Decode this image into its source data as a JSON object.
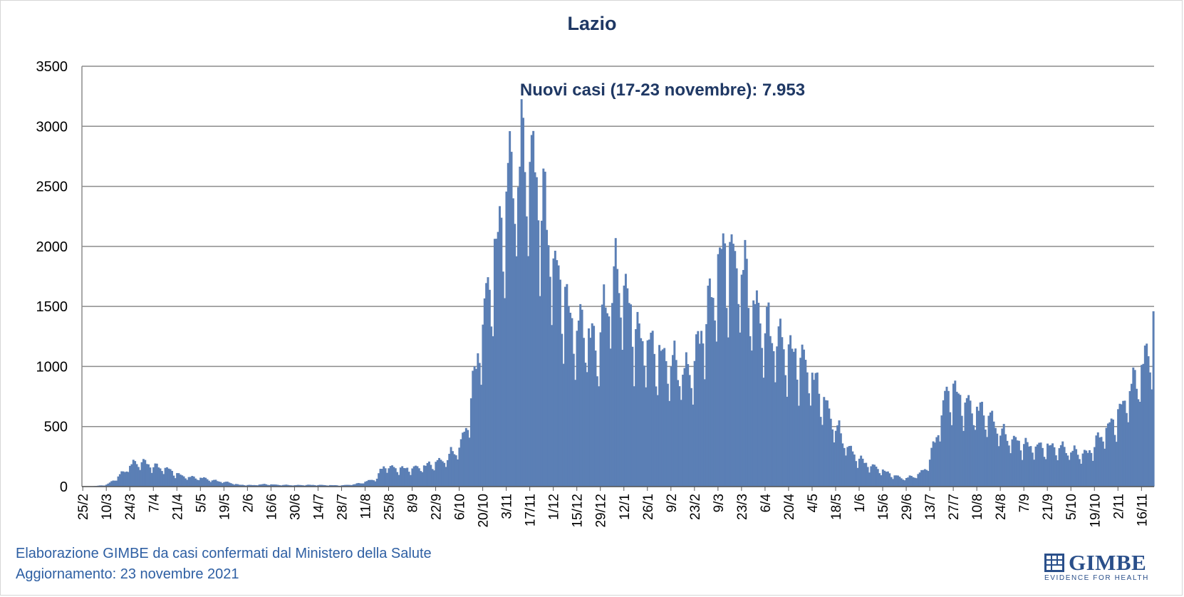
{
  "chart_data": {
    "type": "bar",
    "title": "Lazio",
    "annotation": "Nuovi casi (17-23 novembre): 7.953",
    "xlabel": "",
    "ylabel": "",
    "ylim": [
      0,
      3500
    ],
    "yticks": [
      0,
      500,
      1000,
      1500,
      2000,
      2500,
      3000,
      3500
    ],
    "grid": true,
    "legend": "none",
    "x_tick_labels": [
      "25/2",
      "10/3",
      "24/3",
      "7/4",
      "21/4",
      "5/5",
      "19/5",
      "2/6",
      "16/6",
      "30/6",
      "14/7",
      "28/7",
      "11/8",
      "25/8",
      "8/9",
      "22/9",
      "6/10",
      "20/10",
      "3/11",
      "17/11",
      "1/12",
      "15/12",
      "29/12",
      "12/1",
      "26/1",
      "9/2",
      "23/2",
      "9/3",
      "23/3",
      "6/4",
      "20/4",
      "4/5",
      "18/5",
      "1/6",
      "15/6",
      "29/6",
      "13/7",
      "27/7",
      "10/8",
      "24/8",
      "7/9",
      "21/9",
      "5/10",
      "19/10",
      "2/11",
      "16/11"
    ],
    "x_start": "2020-02-25",
    "x_end": "2021-11-23",
    "series": [
      {
        "name": "",
        "color": "#5b7fb5",
        "points": [
          [
            "2020-02-25",
            0
          ],
          [
            "2020-03-04",
            5
          ],
          [
            "2020-03-10",
            15
          ],
          [
            "2020-03-14",
            50
          ],
          [
            "2020-03-20",
            120
          ],
          [
            "2020-03-24",
            180
          ],
          [
            "2020-03-28",
            200
          ],
          [
            "2020-04-01",
            205
          ],
          [
            "2020-04-05",
            180
          ],
          [
            "2020-04-10",
            160
          ],
          [
            "2020-04-15",
            150
          ],
          [
            "2020-04-20",
            110
          ],
          [
            "2020-04-25",
            85
          ],
          [
            "2020-05-01",
            75
          ],
          [
            "2020-05-07",
            70
          ],
          [
            "2020-05-13",
            50
          ],
          [
            "2020-05-19",
            40
          ],
          [
            "2020-05-23",
            30
          ],
          [
            "2020-05-28",
            15
          ],
          [
            "2020-06-05",
            12
          ],
          [
            "2020-06-12",
            20
          ],
          [
            "2020-06-20",
            15
          ],
          [
            "2020-06-30",
            12
          ],
          [
            "2020-07-10",
            14
          ],
          [
            "2020-07-20",
            12
          ],
          [
            "2020-07-28",
            10
          ],
          [
            "2020-08-05",
            20
          ],
          [
            "2020-08-11",
            40
          ],
          [
            "2020-08-18",
            70
          ],
          [
            "2020-08-22",
            180
          ],
          [
            "2020-08-25",
            160
          ],
          [
            "2020-08-31",
            150
          ],
          [
            "2020-09-08",
            150
          ],
          [
            "2020-09-15",
            170
          ],
          [
            "2020-09-22",
            200
          ],
          [
            "2020-09-29",
            240
          ],
          [
            "2020-10-03",
            300
          ],
          [
            "2020-10-06",
            330
          ],
          [
            "2020-10-10",
            480
          ],
          [
            "2020-10-14",
            820
          ],
          [
            "2020-10-18",
            1200
          ],
          [
            "2020-10-21",
            1450
          ],
          [
            "2020-10-25",
            1750
          ],
          [
            "2020-10-29",
            2050
          ],
          [
            "2020-11-02",
            2350
          ],
          [
            "2020-11-06",
            2650
          ],
          [
            "2020-11-10",
            2600
          ],
          [
            "2020-11-14",
            2850
          ],
          [
            "2020-11-17",
            2700
          ],
          [
            "2020-11-21",
            2600
          ],
          [
            "2020-11-25",
            2300
          ],
          [
            "2020-11-29",
            2050
          ],
          [
            "2020-12-03",
            1750
          ],
          [
            "2020-12-07",
            1600
          ],
          [
            "2020-12-11",
            1400
          ],
          [
            "2020-12-15",
            1300
          ],
          [
            "2020-12-19",
            1350
          ],
          [
            "2020-12-23",
            1250
          ],
          [
            "2020-12-27",
            1150
          ],
          [
            "2020-12-31",
            1450
          ],
          [
            "2021-01-04",
            1650
          ],
          [
            "2021-01-08",
            1750
          ],
          [
            "2021-01-12",
            1650
          ],
          [
            "2021-01-16",
            1450
          ],
          [
            "2021-01-20",
            1250
          ],
          [
            "2021-01-26",
            1200
          ],
          [
            "2021-02-01",
            1100
          ],
          [
            "2021-02-07",
            1050
          ],
          [
            "2021-02-13",
            1000
          ],
          [
            "2021-02-19",
            950
          ],
          [
            "2021-02-23",
            1050
          ],
          [
            "2021-02-28",
            1350
          ],
          [
            "2021-03-05",
            1550
          ],
          [
            "2021-03-09",
            1850
          ],
          [
            "2021-03-13",
            1950
          ],
          [
            "2021-03-17",
            1900
          ],
          [
            "2021-03-21",
            1850
          ],
          [
            "2021-03-25",
            1750
          ],
          [
            "2021-03-29",
            1550
          ],
          [
            "2021-04-03",
            1400
          ],
          [
            "2021-04-08",
            1300
          ],
          [
            "2021-04-13",
            1250
          ],
          [
            "2021-04-18",
            1150
          ],
          [
            "2021-04-23",
            1100
          ],
          [
            "2021-04-28",
            1050
          ],
          [
            "2021-05-03",
            950
          ],
          [
            "2021-05-08",
            800
          ],
          [
            "2021-05-13",
            650
          ],
          [
            "2021-05-18",
            500
          ],
          [
            "2021-05-23",
            380
          ],
          [
            "2021-05-28",
            280
          ],
          [
            "2021-06-02",
            220
          ],
          [
            "2021-06-07",
            180
          ],
          [
            "2021-06-12",
            150
          ],
          [
            "2021-06-17",
            120
          ],
          [
            "2021-06-22",
            90
          ],
          [
            "2021-06-27",
            70
          ],
          [
            "2021-07-02",
            80
          ],
          [
            "2021-07-07",
            110
          ],
          [
            "2021-07-11",
            160
          ],
          [
            "2021-07-15",
            320
          ],
          [
            "2021-07-19",
            550
          ],
          [
            "2021-07-23",
            780
          ],
          [
            "2021-07-27",
            800
          ],
          [
            "2021-08-01",
            720
          ],
          [
            "2021-08-06",
            660
          ],
          [
            "2021-08-11",
            640
          ],
          [
            "2021-08-16",
            600
          ],
          [
            "2021-08-21",
            520
          ],
          [
            "2021-08-26",
            430
          ],
          [
            "2021-09-02",
            380
          ],
          [
            "2021-09-09",
            340
          ],
          [
            "2021-09-16",
            330
          ],
          [
            "2021-09-23",
            330
          ],
          [
            "2021-09-30",
            320
          ],
          [
            "2021-10-07",
            290
          ],
          [
            "2021-10-14",
            270
          ],
          [
            "2021-10-19",
            350
          ],
          [
            "2021-10-24",
            450
          ],
          [
            "2021-10-29",
            520
          ],
          [
            "2021-11-03",
            620
          ],
          [
            "2021-11-08",
            780
          ],
          [
            "2021-11-13",
            900
          ],
          [
            "2021-11-18",
            1050
          ],
          [
            "2021-11-22",
            1200
          ],
          [
            "2021-11-23",
            1460
          ]
        ]
      }
    ]
  },
  "footer": {
    "source": "Elaborazione GIMBE da casi confermati dal Ministero della Salute",
    "updated": "Aggiornamento: 23 novembre 2021"
  },
  "logo": {
    "name": "GIMBE",
    "tagline": "EVIDENCE FOR HEALTH",
    "color": "#2a4f8a"
  }
}
